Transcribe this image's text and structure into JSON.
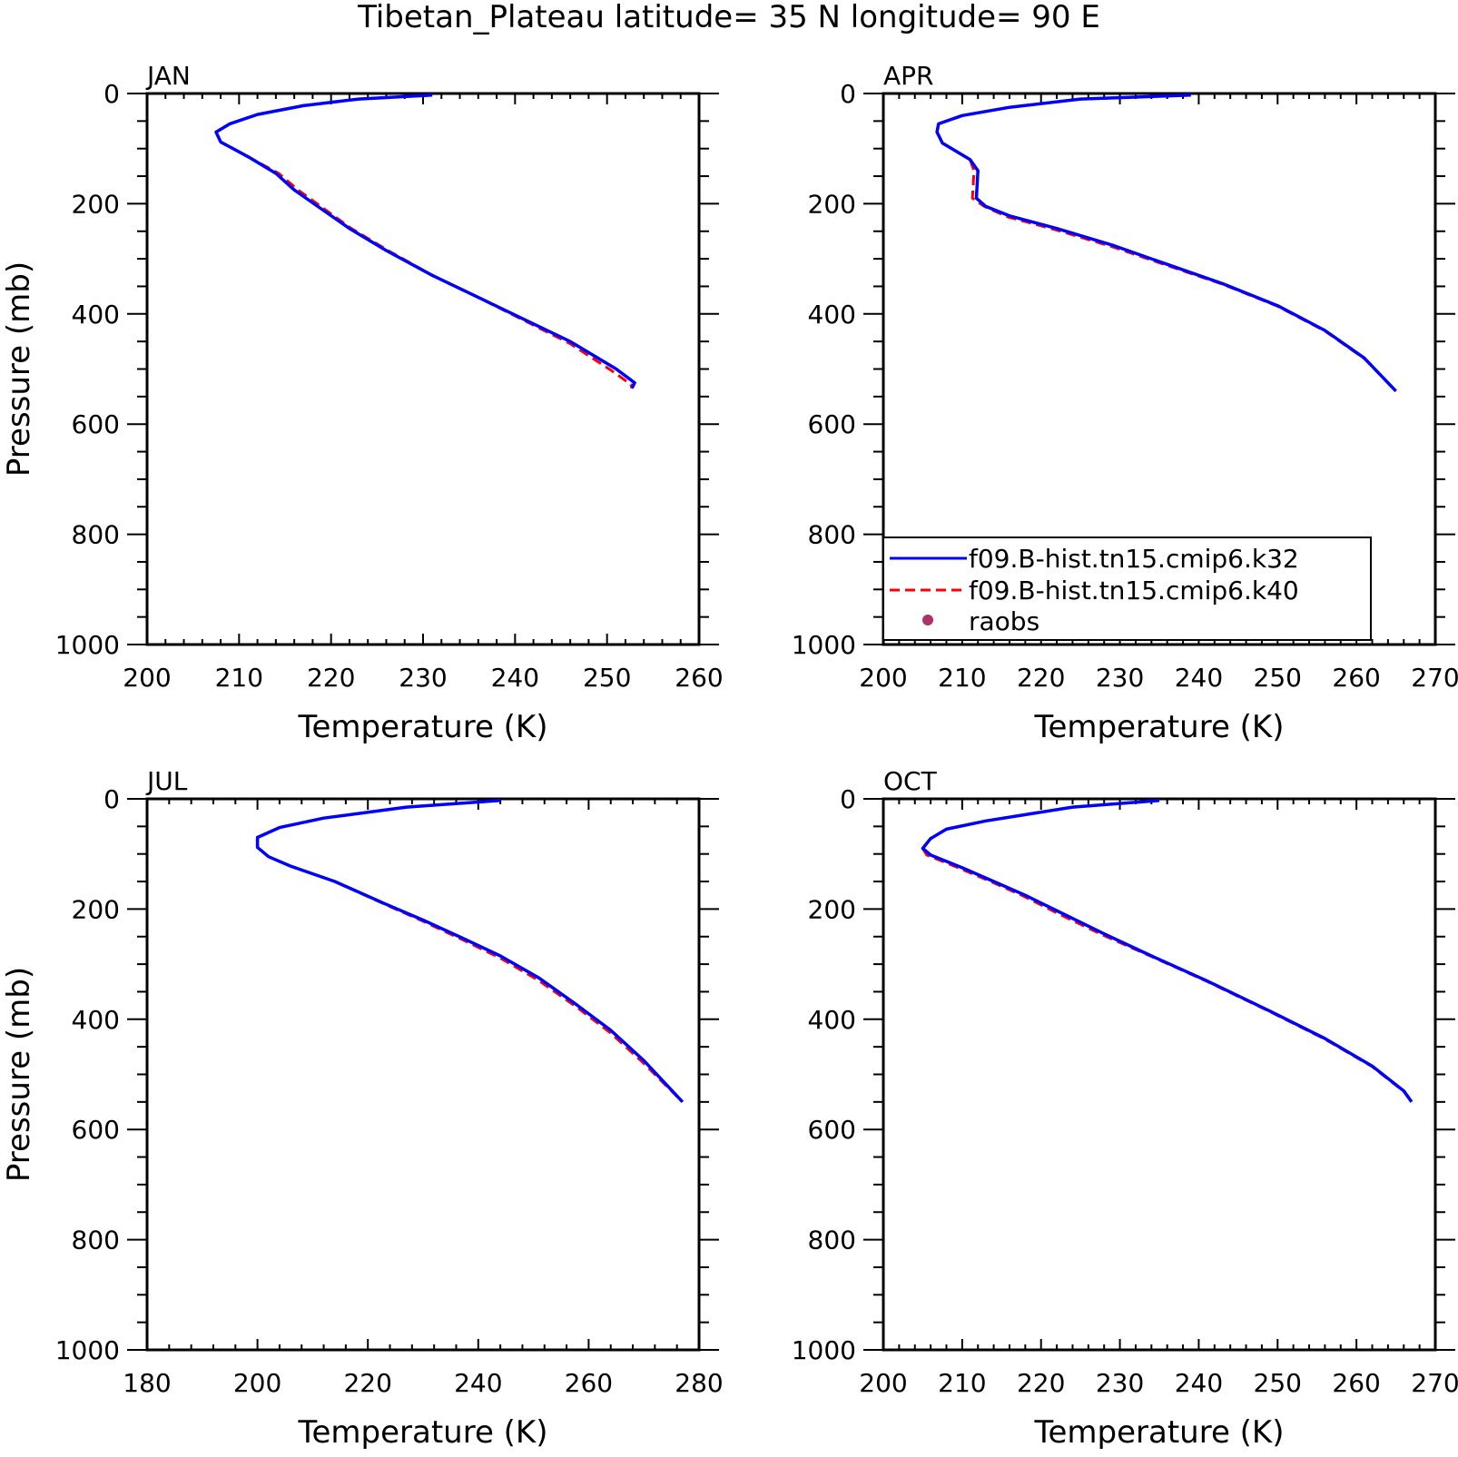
{
  "figure_title": "Tibetan_Plateau  latitude= 35 N longitude= 90 E",
  "colors": {
    "k32": "#0000ff",
    "k40": "#ff0000",
    "raobs": "#b0306a",
    "axes": "#000000"
  },
  "legend": {
    "placement": "in APR panel, lower-left",
    "entries": [
      {
        "label": "f09.B-hist.tn15.cmip6.k32",
        "style": "solid",
        "color": "#0000ff"
      },
      {
        "label": "f09.B-hist.tn15.cmip6.k40",
        "style": "dashed",
        "color": "#ff0000"
      },
      {
        "label": "raobs",
        "style": "dot",
        "color": "#b0306a"
      }
    ]
  },
  "chart_data": [
    {
      "type": "line",
      "panel": "JAN",
      "xlabel": "Temperature (K)",
      "ylabel": "Pressure (mb)",
      "xlim": [
        200,
        260
      ],
      "ylim": [
        1000,
        0
      ],
      "xticks": [
        200,
        210,
        220,
        230,
        240,
        250,
        260
      ],
      "yticks": [
        0,
        200,
        400,
        600,
        800,
        1000
      ],
      "series": [
        {
          "name": "f09.B-hist.tn15.cmip6.k32",
          "style": "solid",
          "points": [
            [
              231,
              3
            ],
            [
              223,
              10
            ],
            [
              217,
              22
            ],
            [
              212,
              38
            ],
            [
              209,
              55
            ],
            [
              207.5,
              70
            ],
            [
              208,
              88
            ],
            [
              211,
              115
            ],
            [
              214,
              145
            ],
            [
              216,
              175
            ],
            [
              219,
              210
            ],
            [
              222,
              245
            ],
            [
              226,
              285
            ],
            [
              231,
              330
            ],
            [
              236,
              370
            ],
            [
              241,
              410
            ],
            [
              246,
              450
            ],
            [
              251,
              500
            ],
            [
              253,
              525
            ],
            [
              252.7,
              535
            ]
          ]
        },
        {
          "name": "f09.B-hist.tn15.cmip6.k40",
          "style": "dashed",
          "points": [
            [
              231,
              3
            ],
            [
              223,
              10
            ],
            [
              217,
              22
            ],
            [
              212,
              38
            ],
            [
              209,
              55
            ],
            [
              207.5,
              70
            ],
            [
              208,
              88
            ],
            [
              211,
              115
            ],
            [
              214.3,
              145
            ],
            [
              216.4,
              175
            ],
            [
              219.3,
              210
            ],
            [
              222.2,
              245
            ],
            [
              226.2,
              285
            ],
            [
              231,
              330
            ],
            [
              236,
              370
            ],
            [
              241,
              412
            ],
            [
              246,
              454
            ],
            [
              250.5,
              503
            ],
            [
              252.6,
              528
            ],
            [
              252.7,
              535
            ]
          ]
        }
      ]
    },
    {
      "type": "line",
      "panel": "APR",
      "xlabel": "Temperature (K)",
      "ylabel": "",
      "xlim": [
        200,
        270
      ],
      "ylim": [
        1000,
        0
      ],
      "xticks": [
        200,
        210,
        220,
        230,
        240,
        250,
        260,
        270
      ],
      "yticks": [
        0,
        200,
        400,
        600,
        800,
        1000
      ],
      "series": [
        {
          "name": "f09.B-hist.tn15.cmip6.k32",
          "style": "solid",
          "points": [
            [
              239,
              3
            ],
            [
              225,
              10
            ],
            [
              216,
              25
            ],
            [
              210,
              40
            ],
            [
              207,
              55
            ],
            [
              206.8,
              70
            ],
            [
              207.5,
              90
            ],
            [
              211,
              120
            ],
            [
              212,
              140
            ],
            [
              211.8,
              190
            ],
            [
              213,
              205
            ],
            [
              216,
              222
            ],
            [
              222,
              245
            ],
            [
              229,
              275
            ],
            [
              236,
              310
            ],
            [
              243,
              345
            ],
            [
              250,
              385
            ],
            [
              256,
              430
            ],
            [
              261,
              480
            ],
            [
              265,
              540
            ]
          ]
        },
        {
          "name": "f09.B-hist.tn15.cmip6.k40",
          "style": "dashed",
          "points": [
            [
              239,
              3
            ],
            [
              225,
              10
            ],
            [
              216,
              25
            ],
            [
              210,
              40
            ],
            [
              207,
              55
            ],
            [
              206.8,
              70
            ],
            [
              207.5,
              90
            ],
            [
              211,
              120
            ],
            [
              211.5,
              140
            ],
            [
              211.3,
              190
            ],
            [
              212.8,
              205
            ],
            [
              215.8,
              224
            ],
            [
              222,
              248
            ],
            [
              229,
              278
            ],
            [
              236,
              312
            ],
            [
              243,
              346
            ],
            [
              250,
              386
            ],
            [
              256,
              431
            ],
            [
              261,
              481
            ],
            [
              265,
              540
            ]
          ]
        }
      ]
    },
    {
      "type": "line",
      "panel": "JUL",
      "xlabel": "Temperature (K)",
      "ylabel": "Pressure (mb)",
      "xlim": [
        180,
        280
      ],
      "ylim": [
        1000,
        0
      ],
      "xticks": [
        180,
        200,
        220,
        240,
        260,
        280
      ],
      "yticks": [
        0,
        200,
        400,
        600,
        800,
        1000
      ],
      "series": [
        {
          "name": "f09.B-hist.tn15.cmip6.k32",
          "style": "solid",
          "points": [
            [
              244,
              3
            ],
            [
              227,
              15
            ],
            [
              212,
              35
            ],
            [
              204,
              52
            ],
            [
              200,
              70
            ],
            [
              200,
              88
            ],
            [
              202,
              105
            ],
            [
              206,
              122
            ],
            [
              214,
              150
            ],
            [
              223,
              190
            ],
            [
              230,
              220
            ],
            [
              237,
              252
            ],
            [
              244,
              285
            ],
            [
              251,
              325
            ],
            [
              258,
              375
            ],
            [
              264,
              420
            ],
            [
              270,
              475
            ],
            [
              277,
              550
            ]
          ]
        },
        {
          "name": "f09.B-hist.tn15.cmip6.k40",
          "style": "dashed",
          "points": [
            [
              244,
              3
            ],
            [
              227,
              15
            ],
            [
              212,
              35
            ],
            [
              204,
              52
            ],
            [
              200,
              70
            ],
            [
              200,
              88
            ],
            [
              202,
              105
            ],
            [
              206,
              122
            ],
            [
              214,
              150
            ],
            [
              223,
              191
            ],
            [
              230,
              222
            ],
            [
              237,
              255
            ],
            [
              244,
              289
            ],
            [
              251,
              330
            ],
            [
              258,
              379
            ],
            [
              264,
              425
            ],
            [
              270,
              480
            ],
            [
              277,
              550
            ]
          ]
        }
      ]
    },
    {
      "type": "line",
      "panel": "OCT",
      "xlabel": "Temperature (K)",
      "ylabel": "",
      "xlim": [
        200,
        270
      ],
      "ylim": [
        1000,
        0
      ],
      "xticks": [
        200,
        210,
        220,
        230,
        240,
        250,
        260,
        270
      ],
      "yticks": [
        0,
        200,
        400,
        600,
        800,
        1000
      ],
      "series": [
        {
          "name": "f09.B-hist.tn15.cmip6.k32",
          "style": "solid",
          "points": [
            [
              235,
              3
            ],
            [
              224,
              15
            ],
            [
              213,
              40
            ],
            [
              208,
              55
            ],
            [
              206,
              72
            ],
            [
              205,
              90
            ],
            [
              206,
              102
            ],
            [
              210,
              125
            ],
            [
              214,
              150
            ],
            [
              218,
              175
            ],
            [
              223,
              210
            ],
            [
              228,
              245
            ],
            [
              234,
              285
            ],
            [
              241,
              330
            ],
            [
              249,
              385
            ],
            [
              256,
              435
            ],
            [
              262,
              485
            ],
            [
              266,
              530
            ],
            [
              267,
              550
            ]
          ]
        },
        {
          "name": "f09.B-hist.tn15.cmip6.k40",
          "style": "dashed",
          "points": [
            [
              235,
              3
            ],
            [
              224,
              15
            ],
            [
              213,
              40
            ],
            [
              208,
              55
            ],
            [
              206,
              72
            ],
            [
              205,
              90
            ],
            [
              205.5,
              102
            ],
            [
              209.5,
              125
            ],
            [
              213.6,
              150
            ],
            [
              217.7,
              176
            ],
            [
              222.7,
              212
            ],
            [
              227.8,
              247
            ],
            [
              234,
              286
            ],
            [
              241,
              331
            ],
            [
              249,
              386
            ],
            [
              256,
              436
            ],
            [
              262,
              486
            ],
            [
              266,
              531
            ],
            [
              267,
              550
            ]
          ]
        }
      ]
    }
  ]
}
